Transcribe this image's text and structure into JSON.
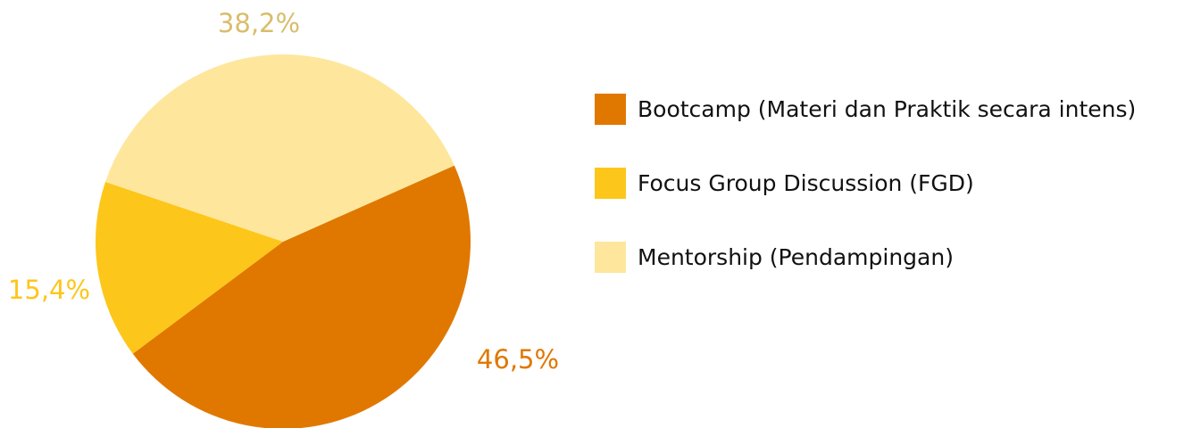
{
  "chart_data": {
    "type": "pie",
    "categories": [
      "Bootcamp (Materi dan Praktik secara intens)",
      "Focus Group Discussion (FGD)",
      "Mentorship (Pendampingan)"
    ],
    "values": [
      46.5,
      15.4,
      38.2
    ],
    "value_labels": [
      "46,5%",
      "15,4%",
      "38,2%"
    ],
    "colors": [
      "#e07800",
      "#fdc61a",
      "#fee79c"
    ],
    "label_colors": [
      "#e07800",
      "#fdc61a",
      "#d9bd6a"
    ],
    "legend": "right"
  }
}
